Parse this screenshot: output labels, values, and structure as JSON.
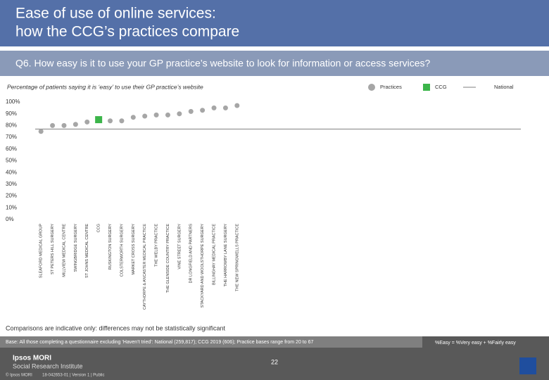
{
  "header": {
    "title_line1": "Ease of use of online services:",
    "title_line2": "how the CCG’s practices compare"
  },
  "chart_data": {
    "type": "dot",
    "question": "Q6. How easy is it to use your GP practice’s website to look for information or access services?",
    "subtitle": "Percentage of patients saying it is ‘easy’ to use their GP practice’s website",
    "categories": [
      "SLEAFORD MEDICAL GROUP",
      "ST PETERS HILL SURGERY",
      "MILLVIEW MEDICAL CENTRE",
      "SWINGBRIDGE SURGERY",
      "ST JOHNS MEDICAL CENTRE",
      "CCG",
      "RUSKINGTON SURGERY",
      "COLSTERWORTH SURGERY",
      "MARKET CROSS SURGERY",
      "CAYTHORPE & ANCASTER MEDICAL PRACTICE",
      "THE WELBY PRACTICE",
      "THE GLENSIDE COUNTRY PRACTICE",
      "VINE STREET SURGERY",
      "DR LONGFIELD AND PARTNERS",
      "STACKYARD AND WOOLSTHORPE SURGERY",
      "BILLINGHAY MEDICAL PRACTICE",
      "THE HARROWBY LANE SURGERY",
      "THE NEW SPRINGWELLS PRACTICE"
    ],
    "series": [
      {
        "name": "Practices",
        "color": "#a6a6a6",
        "values": [
          75,
          80,
          80,
          81,
          83,
          null,
          84,
          84,
          87,
          88,
          89,
          89,
          90,
          92,
          93,
          95,
          95,
          97
        ]
      },
      {
        "name": "CCG",
        "color": "#3cb54a",
        "values": [
          null,
          null,
          null,
          null,
          null,
          85,
          null,
          null,
          null,
          null,
          null,
          null,
          null,
          null,
          null,
          null,
          null,
          null
        ]
      },
      {
        "name": "National",
        "color": "#7f7f7f",
        "value": 77
      }
    ],
    "ylim": [
      0,
      100
    ],
    "yticks": [
      {
        "value": 0,
        "label": "0%"
      },
      {
        "value": 10,
        "label": "10%"
      },
      {
        "value": 20,
        "label": "20%"
      },
      {
        "value": 30,
        "label": "30%"
      },
      {
        "value": 40,
        "label": "40%"
      },
      {
        "value": 50,
        "label": "50%"
      },
      {
        "value": 60,
        "label": "60%"
      },
      {
        "value": 70,
        "label": "70%"
      },
      {
        "value": 80,
        "label": "80%"
      },
      {
        "value": 90,
        "label": "90%"
      },
      {
        "value": 100,
        "label": "100%"
      }
    ]
  },
  "footer": {
    "note": "Comparisons are indicative only: differences may not be statistically significant",
    "base": "Base: All those completing a questionnaire excluding ‘Haven’t tried’: National (259,817); CCG 2019 (606); Practice bases range from 20 to 67",
    "definition": "%Easy = %Very easy + %Fairly easy",
    "page": "22",
    "brand": "Ipsos MORI",
    "brand_sub": "Social Research Institute",
    "copyright": "© Ipsos MORI",
    "job": "18-042653-01 | Version 1 | Public"
  }
}
